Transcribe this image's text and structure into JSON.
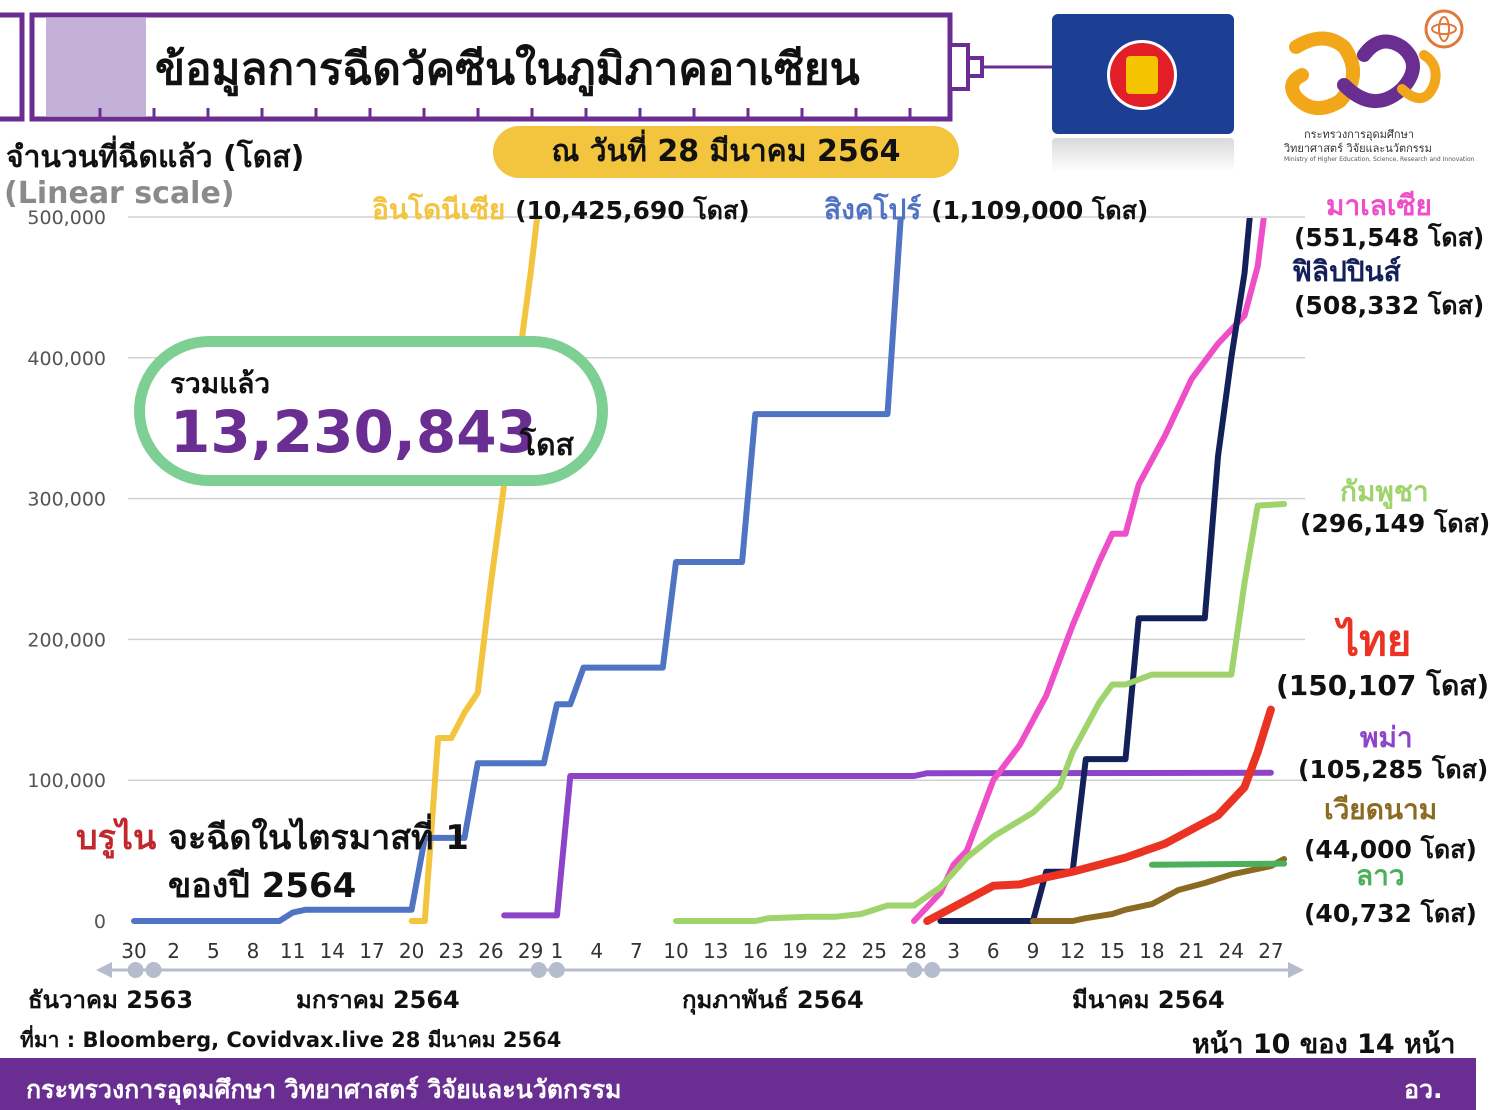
{
  "header": {
    "title": "ข้อมูลการฉีดวัคซีนในภูมิภาคอาเซียน",
    "date": "ณ วันที่ 28 มีนาคม  2564",
    "ministry_th_1": "กระทรวงการอุดมศึกษา",
    "ministry_th_2": "วิทยาศาสตร์ วิจัยและนวัตกรรม",
    "ministry_en": "Ministry of Higher Education, Science, Research and Innovation"
  },
  "total": {
    "label": "รวมแล้ว",
    "value": "13,230,843",
    "unit": "โดส"
  },
  "brunei": {
    "name": "บรูไน",
    "note_1": "จะฉีดในไตรมาสที่ 1",
    "note_2": "ของปี 2564"
  },
  "source": "ที่มา : Bloomberg, Covidvax.live 28 มีนาคม 2564",
  "page_info": "หน้า 10 ของ 14 หน้า",
  "footer": {
    "left": "กระทรวงการอุดมศึกษา วิทยาศาสตร์ วิจัยและนวัตกรรม",
    "right": "อว."
  },
  "colors": {
    "indonesia": "#f3c43d",
    "singapore": "#4f74c4",
    "malaysia": "#ee4fc8",
    "philippines": "#14205a",
    "cambodia": "#9fd36b",
    "thailand": "#ea3323",
    "myanmar": "#8d44c8",
    "vietnam": "#8b6b23",
    "laos": "#4cb05a",
    "purple": "#6a2d91",
    "total_border": "#7dcf93"
  },
  "chart_data": {
    "type": "line",
    "ylabel": "จำนวนที่ฉีดแล้ว (โดส)",
    "scale_note": "(Linear scale)",
    "ylim": [
      0,
      500000
    ],
    "yticks": [
      "0",
      "100,000",
      "200,000",
      "300,000",
      "400,000",
      "500,000"
    ],
    "grid": true,
    "xtick_labels": [
      "30",
      "2",
      "5",
      "8",
      "11",
      "14",
      "17",
      "20",
      "23",
      "26",
      "29",
      "1",
      "4",
      "7",
      "10",
      "13",
      "16",
      "19",
      "22",
      "25",
      "28",
      "3",
      "6",
      "9",
      "12",
      "15",
      "18",
      "21",
      "24",
      "27"
    ],
    "xtick_days": [
      0,
      3,
      6,
      9,
      12,
      15,
      18,
      21,
      24,
      27,
      30,
      32,
      35,
      38,
      41,
      44,
      47,
      50,
      53,
      56,
      59,
      62,
      65,
      68,
      71,
      74,
      77,
      80,
      83,
      86
    ],
    "months": [
      {
        "label": "ธันวาคม 2563"
      },
      {
        "label": "มกราคม 2564"
      },
      {
        "label": "กุมภาพันธ์ 2564"
      },
      {
        "label": "มีนาคม 2564"
      }
    ],
    "month_boundary_days": [
      0.8,
      31.3,
      59.7
    ],
    "x_start": "2020-12-30",
    "series": [
      {
        "key": "indonesia",
        "name": "อินโดนีเซีย",
        "value_label": "(10,425,690 โดส)",
        "color": "#f3c43d",
        "points": [
          [
            21,
            0
          ],
          [
            22,
            0
          ],
          [
            23,
            130000
          ],
          [
            24,
            130000
          ],
          [
            25,
            148000
          ],
          [
            26,
            162000
          ],
          [
            27,
            240000
          ],
          [
            28,
            310000
          ],
          [
            29,
            390000
          ],
          [
            30,
            460000
          ],
          [
            31,
            540000
          ]
        ]
      },
      {
        "key": "singapore",
        "name": "สิงคโปร์",
        "value_label": "(1,109,000 โดส)",
        "color": "#4f74c4",
        "points": [
          [
            0,
            0
          ],
          [
            11,
            0
          ],
          [
            12,
            6000
          ],
          [
            13,
            8000
          ],
          [
            21,
            8000
          ],
          [
            22,
            59000
          ],
          [
            25,
            59000
          ],
          [
            26,
            112000
          ],
          [
            28,
            112000
          ],
          [
            31,
            112000
          ],
          [
            32,
            154000
          ],
          [
            33,
            154000
          ],
          [
            34,
            180000
          ],
          [
            40,
            180000
          ],
          [
            41,
            255000
          ],
          [
            46,
            255000
          ],
          [
            47,
            360000
          ],
          [
            56,
            360000
          ],
          [
            57,
            360000
          ],
          [
            58,
            500000
          ],
          [
            59,
            600000
          ]
        ]
      },
      {
        "key": "myanmar",
        "name": "พม่า",
        "value_label": "(105,285 โดส)",
        "color": "#8d44c8",
        "points": [
          [
            28,
            4000
          ],
          [
            32,
            4000
          ],
          [
            33,
            103000
          ],
          [
            59,
            103000
          ],
          [
            60,
            105000
          ],
          [
            86,
            105285
          ]
        ]
      },
      {
        "key": "malaysia",
        "name": "มาเลเซีย",
        "value_label": "(551,548 โดส)",
        "color": "#ee4fc8",
        "points": [
          [
            59,
            0
          ],
          [
            60,
            10000
          ],
          [
            61,
            20000
          ],
          [
            62,
            40000
          ],
          [
            63,
            50000
          ],
          [
            64,
            75000
          ],
          [
            65,
            100000
          ],
          [
            67,
            125000
          ],
          [
            69,
            160000
          ],
          [
            71,
            210000
          ],
          [
            73,
            255000
          ],
          [
            74,
            275000
          ],
          [
            75,
            275000
          ],
          [
            76,
            310000
          ],
          [
            78,
            345000
          ],
          [
            80,
            385000
          ],
          [
            82,
            410000
          ],
          [
            84,
            430000
          ],
          [
            85,
            465000
          ],
          [
            86,
            540000
          ]
        ]
      },
      {
        "key": "philippines",
        "name": "ฟิลิปปินส์",
        "value_label": "(508,332 โดส)",
        "color": "#14205a",
        "points": [
          [
            61,
            0
          ],
          [
            68,
            0
          ],
          [
            69,
            35000
          ],
          [
            71,
            35000
          ],
          [
            72,
            115000
          ],
          [
            75,
            115000
          ],
          [
            76,
            215000
          ],
          [
            80,
            215000
          ],
          [
            81,
            215000
          ],
          [
            82,
            330000
          ],
          [
            83,
            400000
          ],
          [
            84,
            460000
          ],
          [
            85,
            560000
          ]
        ]
      },
      {
        "key": "cambodia",
        "name": "กัมพูชา",
        "value_label": "(296,149 โดส)",
        "color": "#9fd36b",
        "points": [
          [
            41,
            0
          ],
          [
            47,
            0
          ],
          [
            48,
            2000
          ],
          [
            51,
            3000
          ],
          [
            53,
            3000
          ],
          [
            55,
            5000
          ],
          [
            57,
            11000
          ],
          [
            59,
            11000
          ],
          [
            61,
            24000
          ],
          [
            63,
            45000
          ],
          [
            65,
            60000
          ],
          [
            68,
            77000
          ],
          [
            70,
            95000
          ],
          [
            71,
            120000
          ],
          [
            73,
            155000
          ],
          [
            74,
            168000
          ],
          [
            75,
            168000
          ],
          [
            77,
            175000
          ],
          [
            82,
            175000
          ],
          [
            83,
            175000
          ],
          [
            84,
            240000
          ],
          [
            85,
            295000
          ],
          [
            87,
            296149
          ]
        ]
      },
      {
        "key": "thailand",
        "name": "ไทย",
        "value_label": "(150,107 โดส)",
        "color": "#ea3323",
        "points": [
          [
            60,
            0
          ],
          [
            61,
            5000
          ],
          [
            63,
            15000
          ],
          [
            65,
            25000
          ],
          [
            67,
            26000
          ],
          [
            69,
            31000
          ],
          [
            71,
            35000
          ],
          [
            73,
            40000
          ],
          [
            75,
            45000
          ],
          [
            78,
            55000
          ],
          [
            80,
            65000
          ],
          [
            82,
            75000
          ],
          [
            84,
            95000
          ],
          [
            85,
            120000
          ],
          [
            86,
            150107
          ]
        ]
      },
      {
        "key": "vietnam",
        "name": "เวียดนาม",
        "value_label": "(44,000 โดส)",
        "color": "#8b6b23",
        "points": [
          [
            68,
            0
          ],
          [
            71,
            0
          ],
          [
            72,
            2000
          ],
          [
            74,
            5000
          ],
          [
            75,
            8000
          ],
          [
            77,
            12000
          ],
          [
            79,
            22000
          ],
          [
            81,
            27000
          ],
          [
            83,
            33000
          ],
          [
            86,
            39000
          ],
          [
            87,
            44000
          ]
        ]
      },
      {
        "key": "laos",
        "name": "ลาว",
        "value_label": "(40,732 โดส)",
        "color": "#4cb05a",
        "points": [
          [
            77,
            40000
          ],
          [
            87,
            40732
          ]
        ]
      }
    ]
  }
}
